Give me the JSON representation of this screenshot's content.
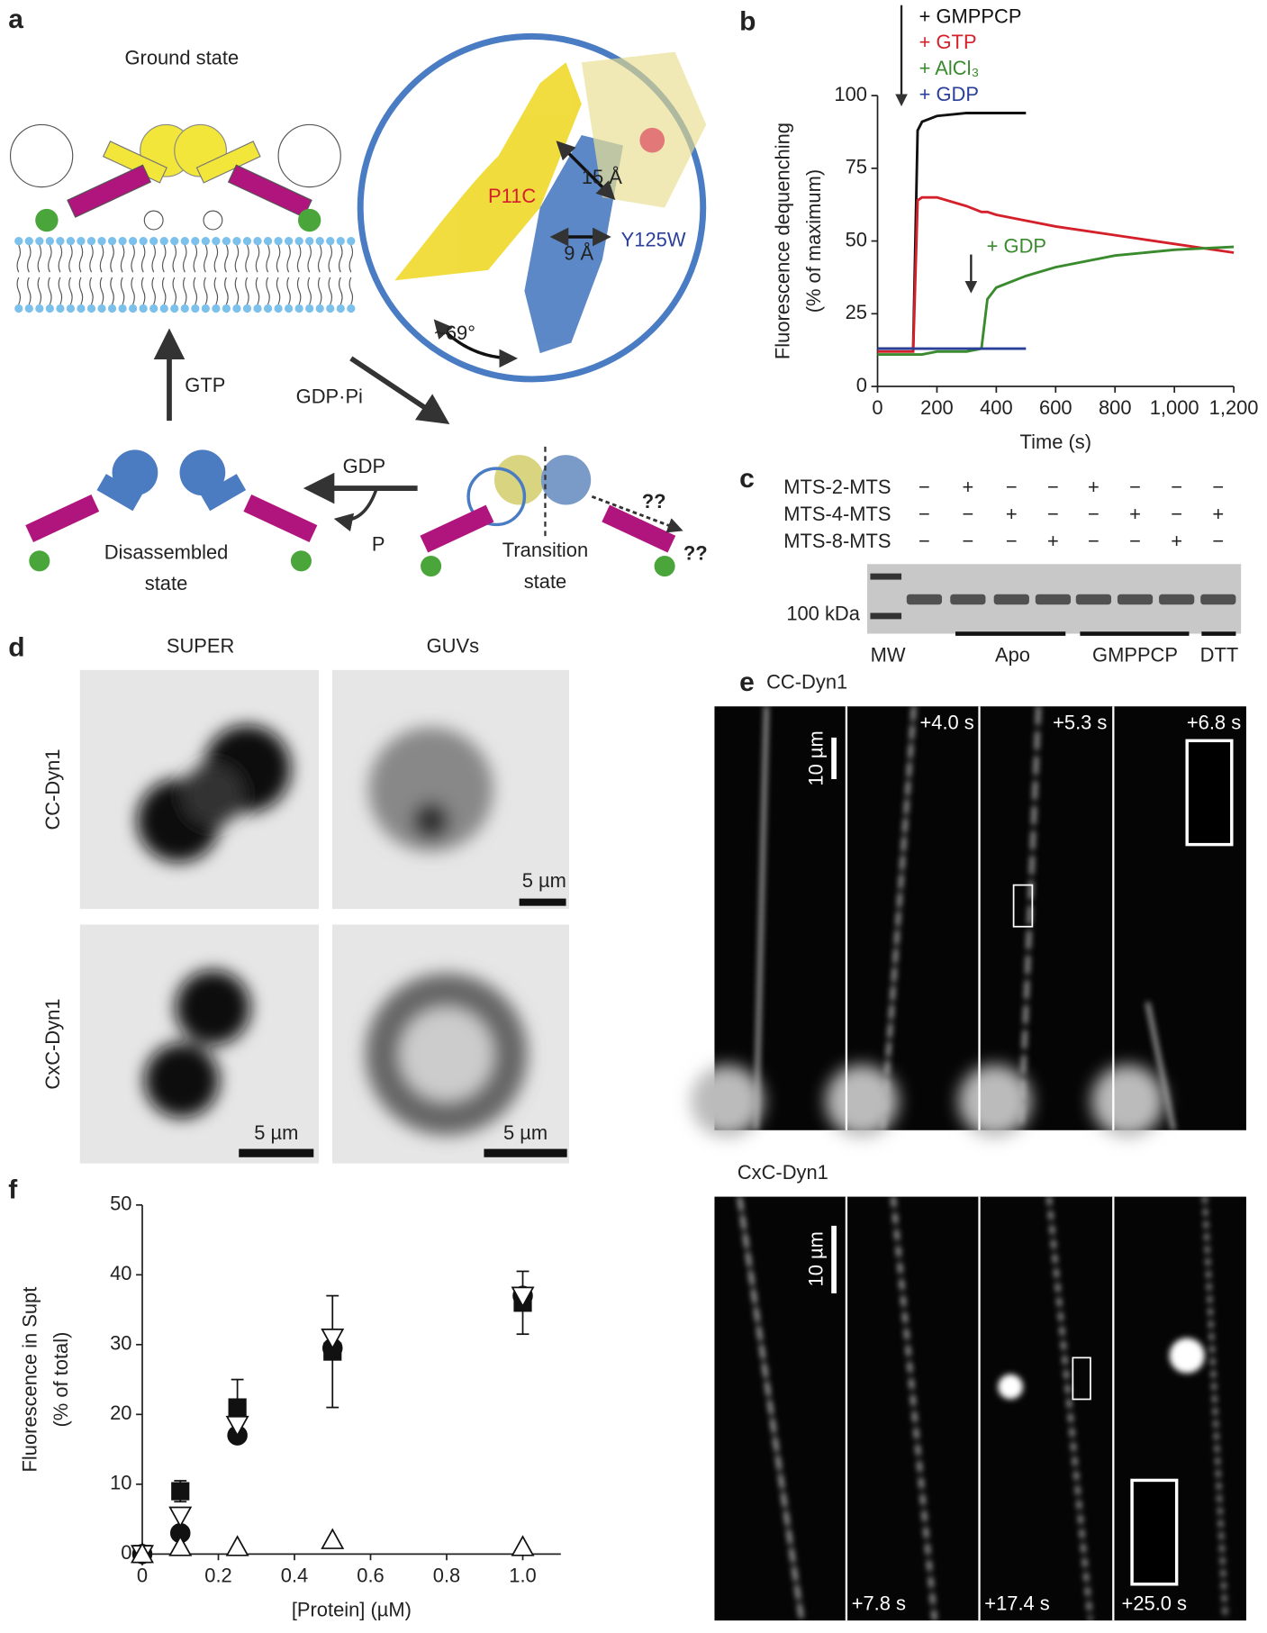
{
  "panel_labels": [
    "a",
    "b",
    "c",
    "d",
    "e",
    "f"
  ],
  "panel_a": {
    "ground_state": "Ground state",
    "p11c": "P11C",
    "dist_15": "15 Å",
    "dist_9": "9 Å",
    "y125w": "Y125W",
    "angle": "~69°",
    "gtp": "GTP",
    "gdp_pi": "GDP·Pi",
    "gdp": "GDP",
    "p": "P",
    "disassembled": [
      "Disassembled",
      "state"
    ],
    "transition": [
      "Transition",
      "state"
    ],
    "unknown": [
      "??",
      "??"
    ]
  },
  "chart_data": [
    {
      "type": "line",
      "xlabel": "Time (s)",
      "ylabel": [
        "Fluorescence dequenching",
        "(% of maximum)"
      ],
      "x": [
        0,
        100,
        120,
        135,
        150,
        200,
        300,
        350,
        370,
        400,
        500,
        600,
        800,
        1000,
        1200
      ],
      "series": [
        {
          "name": "+ GMPPCP",
          "color": "#111111",
          "values": [
            13,
            13,
            13,
            88,
            91,
            93,
            94,
            94,
            94,
            94,
            94,
            null,
            null,
            null,
            null
          ]
        },
        {
          "name": "+ GTP",
          "color": "#d4202a",
          "values": [
            12,
            12,
            12,
            64,
            65,
            65,
            62,
            60,
            60,
            59,
            57,
            55,
            52,
            49,
            46
          ]
        },
        {
          "name": "+ AlCl₃",
          "color": "#3a8a2e",
          "values": [
            11,
            11,
            11,
            11,
            11,
            12,
            12,
            13,
            30,
            34,
            38,
            41,
            45,
            47,
            48
          ]
        },
        {
          "name": "+ GDP",
          "color": "#2a3f9a",
          "values": [
            13,
            13,
            13,
            13,
            13,
            13,
            13,
            13,
            13,
            13,
            13,
            null,
            null,
            null,
            null
          ]
        }
      ],
      "annotations": [
        {
          "text": "+ GDP",
          "x": 350,
          "color": "#3a8a2e"
        }
      ],
      "xlim": [
        0,
        1200
      ],
      "ylim": [
        0,
        100
      ],
      "xticks": [
        0,
        200,
        400,
        600,
        800,
        {
          "value": 1000,
          "label": "1,000"
        },
        {
          "value": 1200,
          "label": "1,200"
        }
      ],
      "yticks": [
        0,
        25,
        50,
        75,
        100
      ]
    },
    {
      "type": "scatter",
      "xlabel": "[Protein] (µM)",
      "ylabel": [
        "Fluorescence in Supt",
        "(% of total)"
      ],
      "x": [
        0,
        0.1,
        0.25,
        0.5,
        1.0
      ],
      "series": [
        {
          "marker": "square",
          "filled": true,
          "values": [
            0,
            9,
            21,
            29,
            36
          ],
          "errors": [
            0,
            1.5,
            4,
            8,
            4.5
          ]
        },
        {
          "marker": "circle",
          "filled": true,
          "values": [
            0,
            3,
            17,
            29.5,
            37
          ]
        },
        {
          "marker": "triangle-down",
          "filled": false,
          "values": [
            0,
            5.5,
            18.5,
            31,
            37
          ]
        },
        {
          "marker": "triangle-up",
          "filled": false,
          "values": [
            0,
            1,
            1,
            2,
            1
          ]
        }
      ],
      "xlim": [
        0,
        1.1
      ],
      "ylim": [
        0,
        50
      ],
      "xticks": [
        0,
        0.2,
        0.4,
        0.6,
        0.8,
        {
          "value": 1.0,
          "label": "1.0"
        }
      ],
      "yticks": [
        0,
        10,
        20,
        30,
        40,
        50
      ]
    }
  ],
  "panel_c": {
    "rows": [
      {
        "label": "MTS-2-MTS",
        "signs": [
          "−",
          "+",
          "−",
          "−",
          "+",
          "−",
          "−",
          "−"
        ]
      },
      {
        "label": "MTS-4-MTS",
        "signs": [
          "−",
          "−",
          "+",
          "−",
          "−",
          "+",
          "−",
          "+"
        ]
      },
      {
        "label": "MTS-8-MTS",
        "signs": [
          "−",
          "−",
          "−",
          "+",
          "−",
          "−",
          "+",
          "−"
        ]
      }
    ],
    "marker": "100 kDa",
    "lanes": [
      "MW",
      "Apo",
      "GMPPCP",
      "DTT"
    ]
  },
  "panel_d": {
    "columns": [
      "SUPER",
      "GUVs"
    ],
    "rows": [
      "CC-Dyn1",
      "CxC-Dyn1"
    ],
    "scale_bars": [
      "5 µm",
      "5 µm",
      "5 µm"
    ]
  },
  "panel_e": {
    "titles": [
      "CC-Dyn1",
      "CxC-Dyn1"
    ],
    "times_top": [
      "+4.0 s",
      "+5.3 s",
      "+6.8 s"
    ],
    "times_bottom": [
      "+7.8 s",
      "+17.4 s",
      "+25.0 s"
    ],
    "scale_bars": [
      "10 µm",
      "10 µm"
    ]
  }
}
